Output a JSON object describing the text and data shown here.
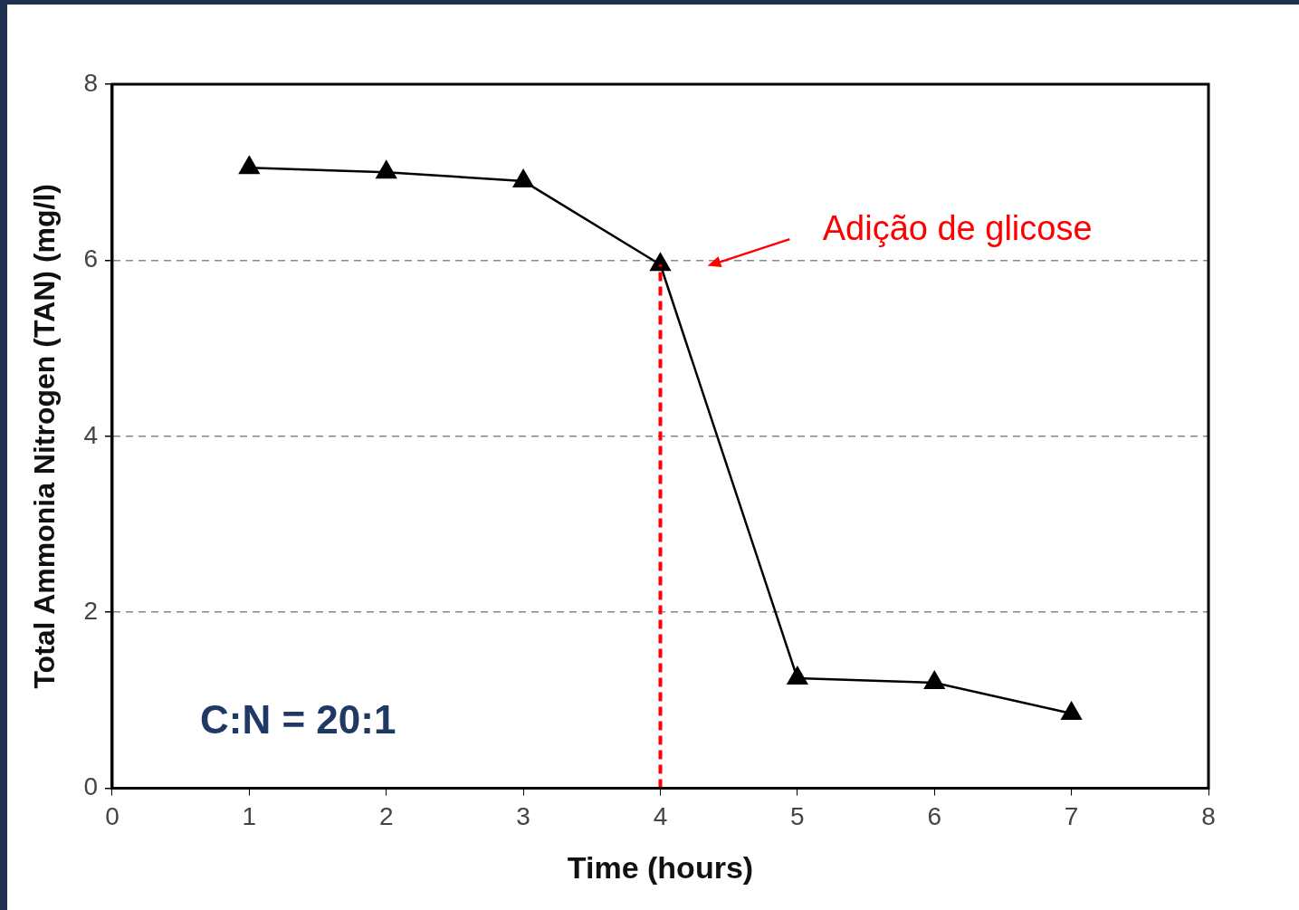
{
  "chart_data": {
    "type": "line",
    "xlabel": "Time (hours)",
    "ylabel": "Total Ammonia Nitrogen (TAN) (mg/l)",
    "x": [
      1,
      2,
      3,
      4,
      5,
      6,
      7
    ],
    "series": [
      {
        "color": "#000000",
        "values": [
          7.05,
          7.0,
          6.9,
          5.95,
          1.25,
          1.2,
          0.85
        ]
      }
    ],
    "xlim": [
      0,
      8
    ],
    "xticks": [
      0,
      1,
      2,
      3,
      4,
      5,
      6,
      7,
      8
    ],
    "ylim": [
      0,
      8
    ],
    "yticks": [
      0,
      2,
      4,
      6,
      8
    ],
    "grid": "y",
    "legend": false,
    "marker": "triangle",
    "line_style": "solid",
    "ref_lines": [
      {
        "axis": "x",
        "value": 4,
        "color": "#ff0000",
        "line_style": "dashed"
      }
    ],
    "annotations": [
      "Adição de glicose",
      "C:N = 20:1"
    ]
  }
}
